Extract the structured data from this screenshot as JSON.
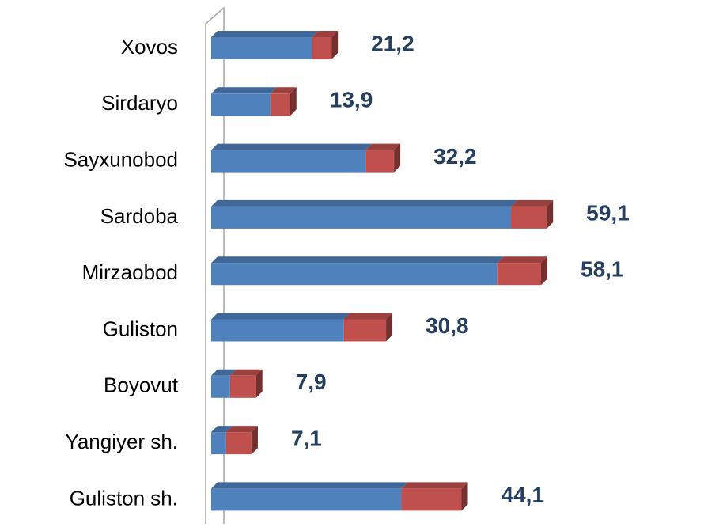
{
  "chart_data": {
    "type": "bar",
    "orientation": "horizontal",
    "stacked": true,
    "three_d": true,
    "categories": [
      "Xovos",
      "Sirdaryo",
      "Sayxunobod",
      "Sardoba",
      "Mirzaobod",
      "Guliston",
      "Boyovut",
      "Yangiyer sh.",
      "Guliston  sh."
    ],
    "series": [
      {
        "color": "#4f81bd",
        "values": [
          17.8,
          10.4,
          27.2,
          52.8,
          50.4,
          23.3,
          3.3,
          2.6,
          33.5
        ]
      },
      {
        "color": "#c0504d",
        "values": [
          3.4,
          3.5,
          5.0,
          6.3,
          7.7,
          7.5,
          4.6,
          4.5,
          10.6
        ]
      }
    ],
    "totals": [
      21.2,
      13.9,
      32.2,
      59.1,
      58.1,
      30.8,
      7.9,
      7.1,
      44.1
    ],
    "total_labels": [
      "21,2",
      "13,9",
      "32,2",
      "59,1",
      "58,1",
      "30,8",
      "7,9",
      "7,1",
      "44,1"
    ],
    "xlim": [
      0,
      62
    ]
  }
}
